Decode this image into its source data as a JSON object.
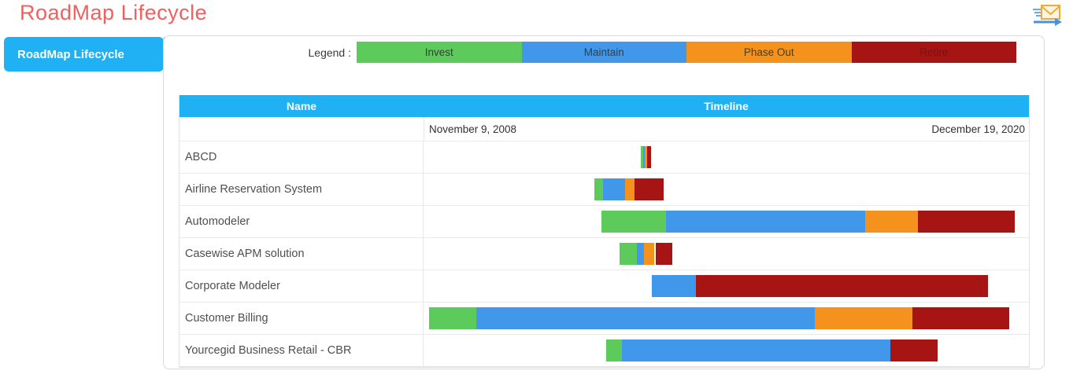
{
  "page": {
    "title": "RoadMap Lifecycle"
  },
  "sidebar": {
    "active_tab": "RoadMap Lifecycle"
  },
  "legend": {
    "label": "Legend :",
    "items": [
      {
        "label": "Invest",
        "color": "#5dcb5c",
        "text_color": "#3b3b3b"
      },
      {
        "label": "Maintain",
        "color": "#4197ea",
        "text_color": "#2f4154"
      },
      {
        "label": "Phase Out",
        "color": "#f5921e",
        "text_color": "#4e3c17"
      },
      {
        "label": "Retire",
        "color": "#a61414",
        "text_color": "#7c1010"
      }
    ]
  },
  "table": {
    "columns": [
      "Name",
      "Timeline"
    ]
  },
  "chart_data": {
    "type": "gantt",
    "title": "RoadMap Lifecycle",
    "timeline_start": "November 9, 2008",
    "timeline_end": "December 19, 2020",
    "legend_position": "top",
    "phase_colors": {
      "Invest": "#5dcb5c",
      "Maintain": "#4197ea",
      "Phase Out": "#f5921e",
      "Retire": "#a61414"
    },
    "rows": [
      {
        "name": "ABCD",
        "segments": [
          {
            "phase": "Invest",
            "left_pct": 35.89,
            "width_pct": 0.39
          },
          {
            "phase": "Maintain",
            "left_pct": 36.28,
            "width_pct": 0.26
          },
          {
            "phase": "Phase Out",
            "left_pct": 36.54,
            "width_pct": 0.39
          },
          {
            "phase": "Retire",
            "left_pct": 36.93,
            "width_pct": 0.65
          }
        ]
      },
      {
        "name": "Airline Reservation System",
        "segments": [
          {
            "phase": "Invest",
            "left_pct": 28.22,
            "width_pct": 1.43
          },
          {
            "phase": "Maintain",
            "left_pct": 29.65,
            "width_pct": 3.64
          },
          {
            "phase": "Phase Out",
            "left_pct": 33.29,
            "width_pct": 1.56
          },
          {
            "phase": "Retire",
            "left_pct": 34.85,
            "width_pct": 4.81
          }
        ]
      },
      {
        "name": "Automodeler",
        "segments": [
          {
            "phase": "Invest",
            "left_pct": 29.39,
            "width_pct": 10.66
          },
          {
            "phase": "Maintain",
            "left_pct": 40.05,
            "width_pct": 32.9
          },
          {
            "phase": "Phase Out",
            "left_pct": 72.95,
            "width_pct": 8.71
          },
          {
            "phase": "Retire",
            "left_pct": 81.66,
            "width_pct": 16.0
          }
        ]
      },
      {
        "name": "Casewise APM solution",
        "segments": [
          {
            "phase": "Invest",
            "left_pct": 32.38,
            "width_pct": 2.86
          },
          {
            "phase": "Maintain",
            "left_pct": 35.24,
            "width_pct": 1.17
          },
          {
            "phase": "Phase Out",
            "left_pct": 36.41,
            "width_pct": 1.69
          },
          {
            "phase": "Retire",
            "left_pct": 38.36,
            "width_pct": 2.73
          }
        ]
      },
      {
        "name": "Corporate Modeler",
        "segments": [
          {
            "phase": "Maintain",
            "left_pct": 37.71,
            "width_pct": 7.28
          },
          {
            "phase": "Retire",
            "left_pct": 44.99,
            "width_pct": 48.24
          }
        ]
      },
      {
        "name": "Customer Billing",
        "segments": [
          {
            "phase": "Invest",
            "left_pct": 0.91,
            "width_pct": 7.8
          },
          {
            "phase": "Maintain",
            "left_pct": 8.71,
            "width_pct": 55.92
          },
          {
            "phase": "Phase Out",
            "left_pct": 64.63,
            "width_pct": 16.13
          },
          {
            "phase": "Retire",
            "left_pct": 80.76,
            "width_pct": 16.0
          }
        ]
      },
      {
        "name": "Yourcegid Business Retail - CBR",
        "segments": [
          {
            "phase": "Invest",
            "left_pct": 30.17,
            "width_pct": 2.6
          },
          {
            "phase": "Maintain",
            "left_pct": 32.77,
            "width_pct": 44.34
          },
          {
            "phase": "Retire",
            "left_pct": 77.11,
            "width_pct": 7.8
          }
        ]
      }
    ]
  }
}
